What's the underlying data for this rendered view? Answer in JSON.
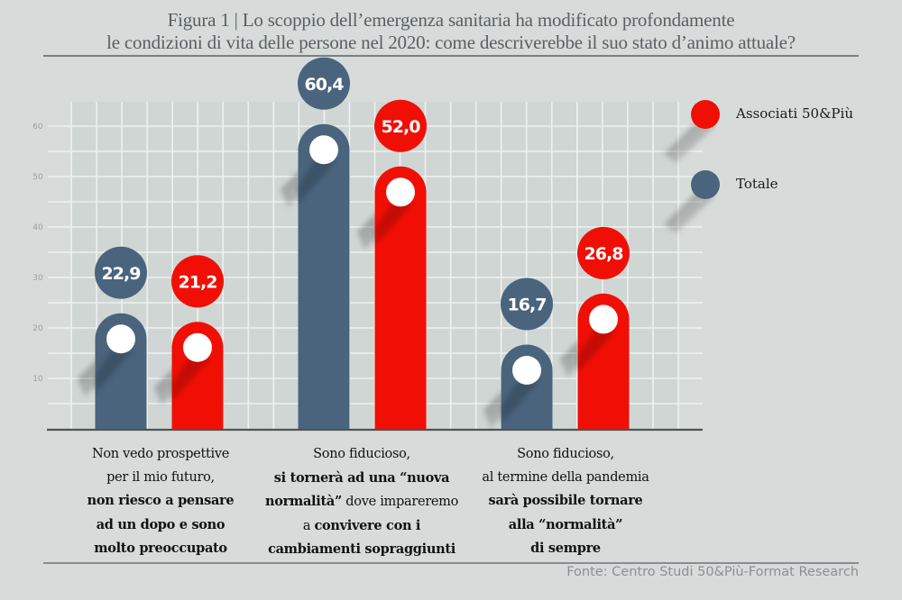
{
  "title": {
    "line1": "Figura 1  | Lo scoppio dell’emergenza sanitaria ha modificato profondamente",
    "line2": "le condizioni di vita delle persone nel 2020: come descriverebbe il suo stato d’animo attuale?"
  },
  "legend": [
    {
      "label": "Associati 50&Più",
      "color": "#f10f05"
    },
    {
      "label": "Totale",
      "color": "#4a647e"
    }
  ],
  "source": "Fonte: Centro Studi 50&Più-Format Research",
  "colors": {
    "totale": "#4a647e",
    "associati": "#f10f05",
    "background": "#d7dcda"
  },
  "category_labels": [
    [
      {
        "text": "Non vedo prospettive",
        "bold": false
      },
      {
        "text": "per il mio futuro,",
        "bold": false
      },
      {
        "text": "non riesco a pensare",
        "bold": true
      },
      {
        "text": "ad un dopo e sono",
        "bold": true
      },
      {
        "text": "molto preoccupato",
        "bold": true
      }
    ],
    [
      {
        "text": "Sono fiducioso,",
        "bold": false
      },
      {
        "text": "si tornerà ad una “nuova",
        "bold": true
      },
      {
        "parts": [
          {
            "text": "normalità”",
            "bold": true
          },
          {
            "text": " dove impareremo",
            "bold": false
          }
        ]
      },
      {
        "parts": [
          {
            "text": "a ",
            "bold": false
          },
          {
            "text": "convivere con i",
            "bold": true
          }
        ]
      },
      {
        "text": "cambiamenti sopraggiunti",
        "bold": true
      }
    ],
    [
      {
        "text": "Sono fiducioso,",
        "bold": false
      },
      {
        "text": "al termine della pandemia",
        "bold": false
      },
      {
        "text": "sarà possibile tornare",
        "bold": true
      },
      {
        "text": "alla “normalità”",
        "bold": true
      },
      {
        "text": "di sempre",
        "bold": true
      }
    ]
  ],
  "chart_data": {
    "type": "bar",
    "title": "Figura 1 | Lo scoppio dell’emergenza sanitaria ha modificato profondamente le condizioni di vita delle persone nel 2020: come descriverebbe il suo stato d’animo attuale?",
    "categories": [
      "Non vedo prospettive per il mio futuro, non riesco a pensare ad un dopo e sono molto preoccupato",
      "Sono fiducioso, si tornerà ad una “nuova normalità” dove impareremo a convivere con i cambiamenti sopraggiunti",
      "Sono fiducioso, al termine della pandemia sarà possibile tornare alla “normalità” di sempre"
    ],
    "series": [
      {
        "name": "Totale",
        "values": [
          22.9,
          60.4,
          16.7
        ],
        "labels": [
          "22,9",
          "60,4",
          "16,7"
        ],
        "color": "#4a647e"
      },
      {
        "name": "Associati 50&Più",
        "values": [
          21.2,
          52.0,
          26.8
        ],
        "labels": [
          "21,2",
          "52,0",
          "26,8"
        ],
        "color": "#f10f05"
      }
    ],
    "xlabel": "",
    "ylabel": "",
    "ylim": [
      0,
      65
    ],
    "yticks": [
      10,
      20,
      30,
      40,
      50,
      60
    ],
    "grid": true,
    "legend_position": "right"
  }
}
